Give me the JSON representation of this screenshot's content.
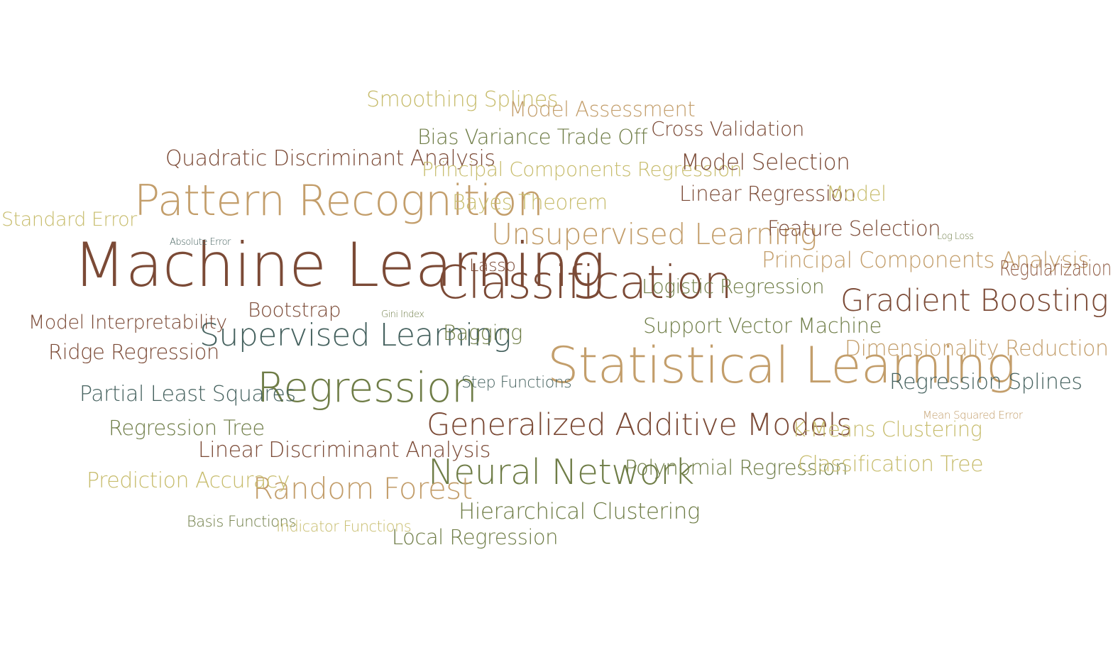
{
  "colors": {
    "brown": "#7b4a36",
    "tan": "#b9a064",
    "olive": "#6f7d47",
    "teal": "#46625f",
    "khaki": "#c7bc6c",
    "rust": "#8e5a42",
    "sand": "#c39e6b"
  },
  "words": [
    "Machine Learning",
    "Classification",
    "Statistical Learning",
    "Pattern Recognition",
    "Regression",
    "Supervised Learning",
    "Gradient Boosting",
    "Unsupervised Learning",
    "Generalized Additive Models",
    "Neural Network",
    "Random Forest",
    "Smoothing Splines",
    "Model Assessment",
    "Cross Validation",
    "Bias Variance Trade Off",
    "Quadratic Discriminant Analysis",
    "Principal Components Regression",
    "Model Selection",
    "Linear Regression",
    "Model",
    "Standard Error",
    "Bayes Theorem",
    "Feature Selection",
    "Log Loss",
    "Absolute Error",
    "Principal Components Analysis",
    "Regularization",
    "Lasso",
    "Logistic Regression",
    "Model Interpretability",
    "Bootstrap",
    "Gini Index",
    "Support Vector Machine",
    "Bagging",
    "Ridge Regression",
    "Dimensionality Reduction",
    "Step Functions",
    "Partial Least Squares",
    "Regression Splines",
    "Mean Squared Error",
    "Regression Tree",
    "K-Means Clustering",
    "Linear Discriminant Analysis",
    "Polynomial Regression",
    "Classification Tree",
    "Prediction Accuracy",
    "Hierarchical Clustering",
    "Basis Functions",
    "Indicator Functions",
    "Local Regression"
  ]
}
